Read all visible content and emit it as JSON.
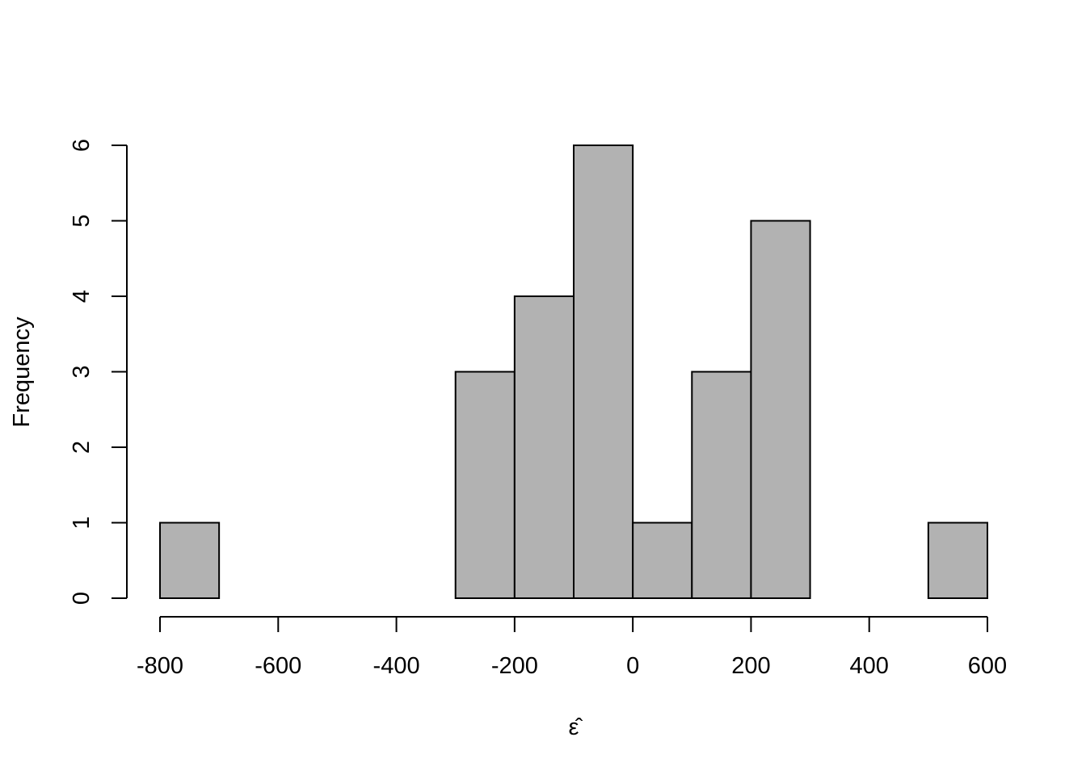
{
  "chart_data": {
    "type": "bar",
    "subtype": "histogram",
    "title": "",
    "xlabel": "ε̂",
    "ylabel": "Frequency",
    "bins": [
      {
        "start": -800,
        "end": -700,
        "count": 1
      },
      {
        "start": -700,
        "end": -600,
        "count": 0
      },
      {
        "start": -600,
        "end": -500,
        "count": 0
      },
      {
        "start": -500,
        "end": -400,
        "count": 0
      },
      {
        "start": -400,
        "end": -300,
        "count": 0
      },
      {
        "start": -300,
        "end": -200,
        "count": 3
      },
      {
        "start": -200,
        "end": -100,
        "count": 4
      },
      {
        "start": -100,
        "end": 0,
        "count": 6
      },
      {
        "start": 0,
        "end": 100,
        "count": 1
      },
      {
        "start": 100,
        "end": 200,
        "count": 3
      },
      {
        "start": 200,
        "end": 300,
        "count": 5
      },
      {
        "start": 300,
        "end": 400,
        "count": 0
      },
      {
        "start": 400,
        "end": 500,
        "count": 0
      },
      {
        "start": 500,
        "end": 600,
        "count": 1
      }
    ],
    "xlim": [
      -800,
      600
    ],
    "ylim": [
      0,
      6
    ],
    "xticks": [
      "-800",
      "-600",
      "-400",
      "-200",
      "0",
      "200",
      "400",
      "600"
    ],
    "yticks": [
      "0",
      "1",
      "2",
      "3",
      "4",
      "5",
      "6"
    ],
    "grid": false,
    "bar_color": "#b2b2b2",
    "edge_color": "#000000"
  }
}
